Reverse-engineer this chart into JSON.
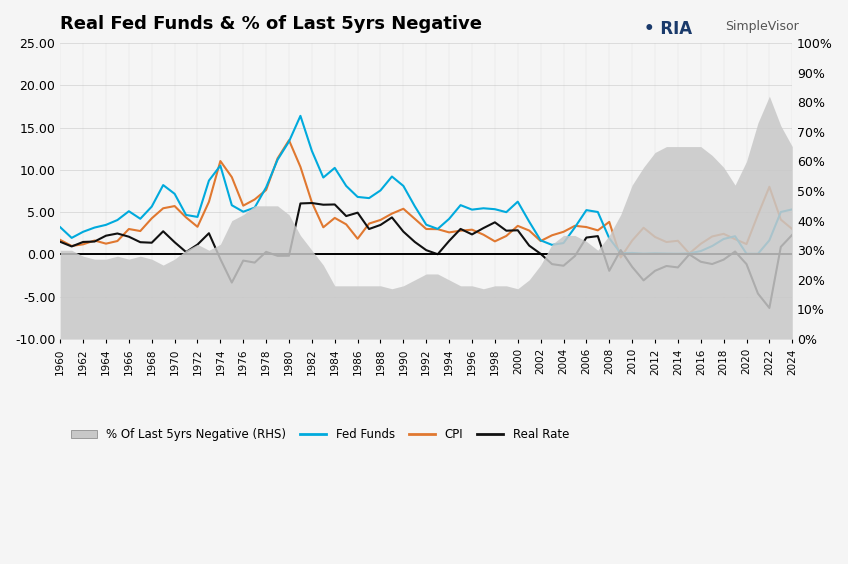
{
  "title": "Real Fed Funds & % of Last 5yrs Negative",
  "years": [
    1960,
    1961,
    1962,
    1963,
    1964,
    1965,
    1966,
    1967,
    1968,
    1969,
    1970,
    1971,
    1972,
    1973,
    1974,
    1975,
    1976,
    1977,
    1978,
    1979,
    1980,
    1981,
    1982,
    1983,
    1984,
    1985,
    1986,
    1987,
    1988,
    1989,
    1990,
    1991,
    1992,
    1993,
    1994,
    1995,
    1996,
    1997,
    1998,
    1999,
    2000,
    2001,
    2002,
    2003,
    2004,
    2005,
    2006,
    2007,
    2008,
    2009,
    2010,
    2011,
    2012,
    2013,
    2014,
    2015,
    2016,
    2017,
    2018,
    2019,
    2020,
    2021,
    2022,
    2023,
    2024
  ],
  "fed_funds": [
    3.22,
    1.96,
    2.68,
    3.18,
    3.5,
    4.07,
    5.11,
    4.22,
    5.66,
    8.2,
    7.17,
    4.67,
    4.44,
    8.73,
    10.5,
    5.82,
    5.05,
    5.54,
    7.93,
    11.19,
    13.35,
    16.38,
    12.24,
    9.09,
    10.23,
    8.1,
    6.8,
    6.66,
    7.57,
    9.21,
    8.1,
    5.69,
    3.52,
    3.02,
    4.21,
    5.83,
    5.3,
    5.46,
    5.35,
    5.0,
    6.24,
    3.88,
    1.67,
    1.13,
    1.35,
    3.21,
    5.24,
    5.02,
    1.92,
    0.16,
    0.18,
    0.1,
    0.14,
    0.11,
    0.09,
    0.13,
    0.4,
    1.0,
    1.83,
    2.16,
    0.09,
    0.08,
    1.68,
    5.02,
    5.33
  ],
  "cpi": [
    1.72,
    1.01,
    1.2,
    1.65,
    1.28,
    1.59,
    3.01,
    2.77,
    4.27,
    5.46,
    5.72,
    4.38,
    3.27,
    6.22,
    11.04,
    9.14,
    5.77,
    6.5,
    7.62,
    11.35,
    13.5,
    10.35,
    6.16,
    3.21,
    4.32,
    3.56,
    1.86,
    3.65,
    4.08,
    4.83,
    5.4,
    4.21,
    3.01,
    2.99,
    2.61,
    2.81,
    2.93,
    2.34,
    1.55,
    2.19,
    3.38,
    2.83,
    1.59,
    2.27,
    2.68,
    3.39,
    3.24,
    2.85,
    3.85,
    -0.36,
    1.64,
    3.16,
    2.07,
    1.47,
    1.62,
    0.12,
    1.26,
    2.13,
    2.44,
    1.81,
    1.23,
    4.7,
    8.0,
    4.12,
    3.0
  ],
  "real_rate": [
    1.5,
    0.95,
    1.48,
    1.53,
    2.22,
    2.48,
    2.1,
    1.45,
    1.39,
    2.74,
    1.45,
    0.29,
    1.17,
    2.51,
    -0.54,
    -3.32,
    -0.72,
    -0.96,
    0.31,
    -0.16,
    -0.15,
    6.03,
    6.08,
    5.88,
    5.91,
    4.54,
    4.94,
    3.01,
    3.49,
    4.38,
    2.7,
    1.48,
    0.51,
    0.03,
    1.6,
    3.02,
    2.37,
    3.12,
    3.8,
    2.81,
    2.86,
    1.05,
    0.08,
    -1.14,
    -1.33,
    -0.18,
    2.0,
    2.17,
    -1.93,
    0.52,
    -1.46,
    -3.06,
    -1.93,
    -1.36,
    -1.53,
    0.01,
    -0.86,
    -1.13,
    -0.61,
    0.35,
    -1.14,
    -4.62,
    -6.32,
    0.9,
    2.33
  ],
  "pct_negative_rhs": [
    30,
    30,
    28,
    27,
    27,
    28,
    27,
    28,
    27,
    25,
    27,
    30,
    32,
    30,
    32,
    40,
    42,
    45,
    45,
    45,
    42,
    35,
    30,
    25,
    18,
    18,
    18,
    18,
    18,
    17,
    18,
    20,
    22,
    22,
    20,
    18,
    18,
    17,
    18,
    18,
    17,
    20,
    25,
    32,
    35,
    35,
    33,
    30,
    35,
    42,
    52,
    58,
    63,
    65,
    65,
    65,
    65,
    62,
    58,
    52,
    60,
    73,
    82,
    72,
    65
  ],
  "ylim_left": [
    -10,
    25
  ],
  "ylim_right": [
    0,
    100
  ],
  "yticks_left": [
    -10,
    -5,
    0,
    5,
    10,
    15,
    20,
    25
  ],
  "yticks_right": [
    0,
    10,
    20,
    30,
    40,
    50,
    60,
    70,
    80,
    90,
    100
  ],
  "fed_funds_color": "#00AADD",
  "cpi_color": "#E07830",
  "real_rate_color": "#111111",
  "pct_neg_color": "#C8C8C8",
  "background_color": "#F5F5F5",
  "zero_line_color": "#000000",
  "legend_labels": [
    "% Of Last 5yrs Negative (RHS)",
    "Fed Funds",
    "CPI",
    "Real Rate"
  ]
}
